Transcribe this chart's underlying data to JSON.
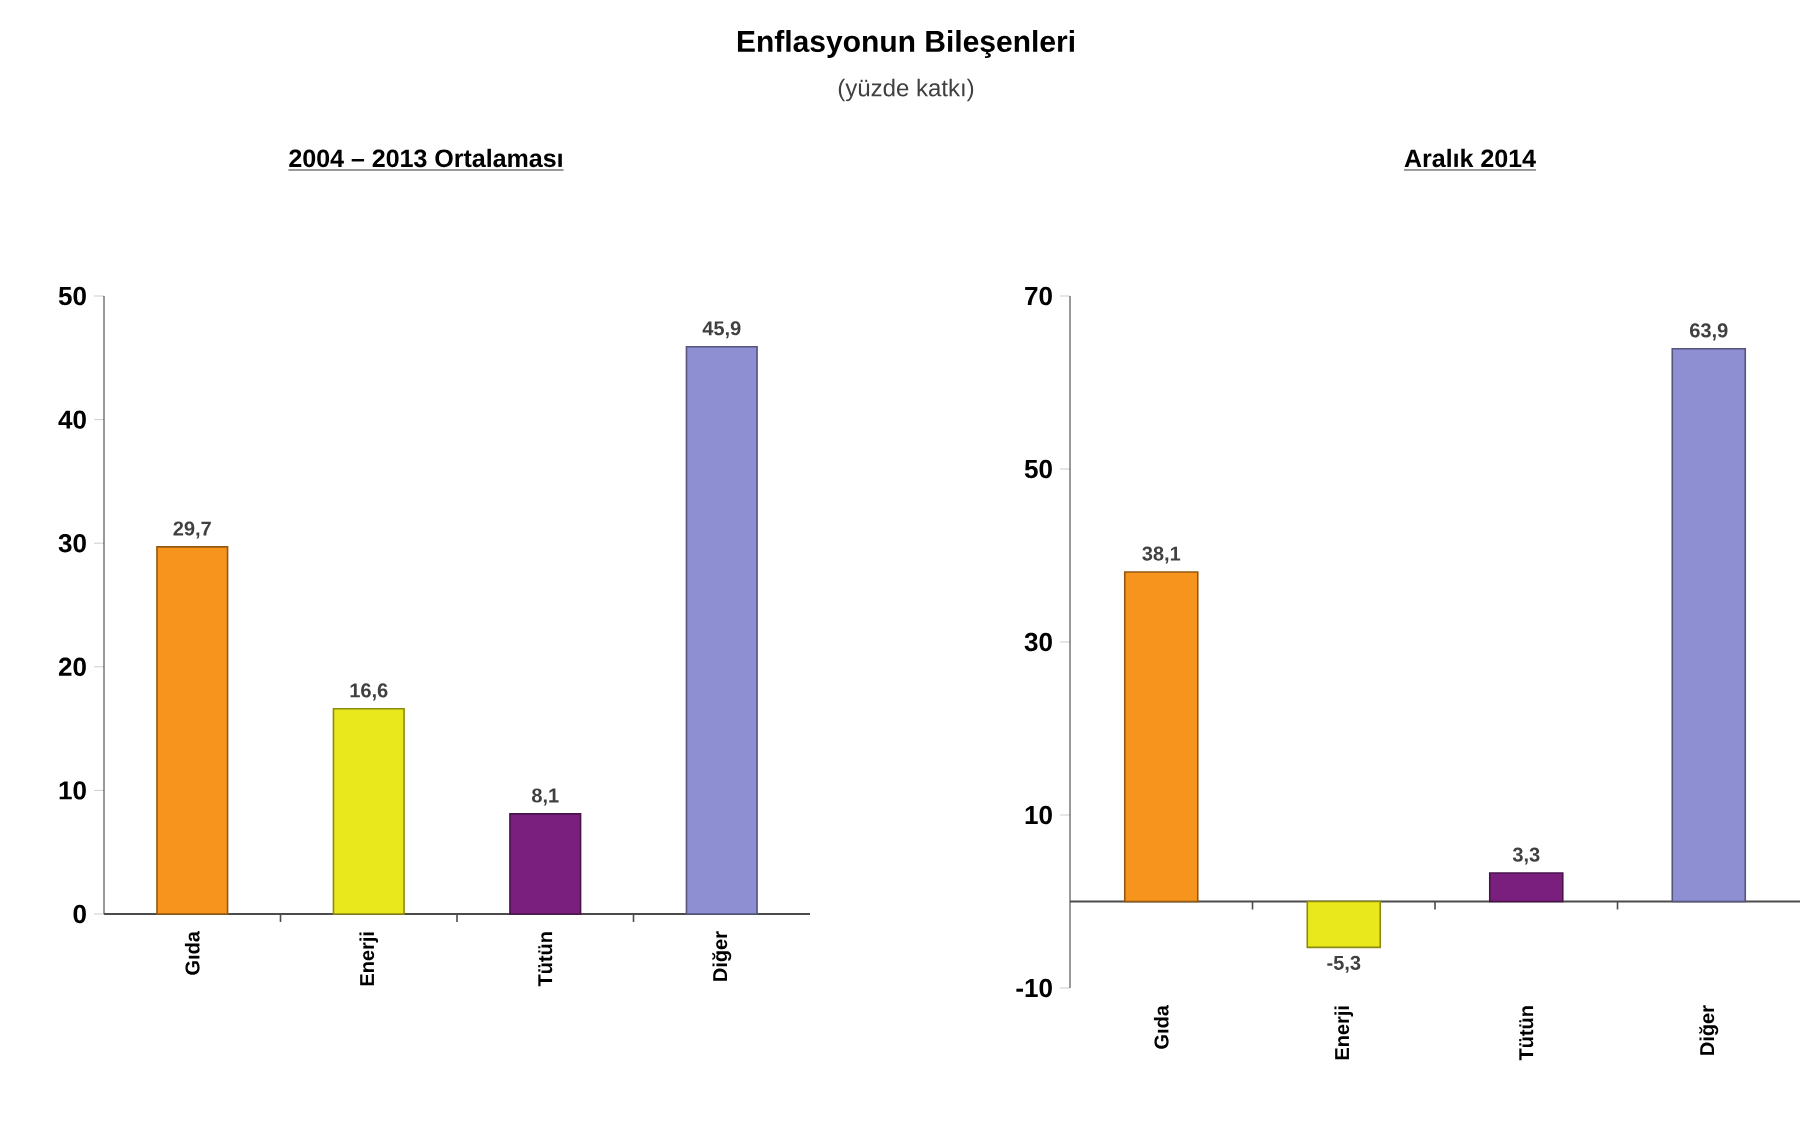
{
  "chart_data": [
    {
      "type": "other",
      "title": "Enflasyonun Bileşenleri",
      "subtitle": "(yüzde katkı)"
    },
    {
      "type": "bar",
      "title": "2004 – 2013 Ortalaması",
      "categories": [
        "Gıda",
        "Enerji",
        "Tütün",
        "Diğer"
      ],
      "values": [
        29.7,
        16.6,
        8.1,
        45.9
      ],
      "colors": [
        "#f7941d",
        "#e8e81c",
        "#7b1f7e",
        "#8e8ed2"
      ],
      "value_labels": [
        "29,7",
        "16,6",
        "8,1",
        "45,9"
      ],
      "ylim": [
        0,
        50
      ],
      "yticks": [
        0,
        10,
        20,
        30,
        40,
        50
      ]
    },
    {
      "type": "bar",
      "title": "Aralık 2014",
      "categories": [
        "Gıda",
        "Enerji",
        "Tütün",
        "Diğer"
      ],
      "values": [
        38.1,
        -5.3,
        3.3,
        63.9
      ],
      "colors": [
        "#f7941d",
        "#e8e81c",
        "#7b1f7e",
        "#8e8ed2"
      ],
      "value_labels": [
        "38,1",
        "-5,3",
        "3,3",
        "63,9"
      ],
      "ylim": [
        -10,
        70
      ],
      "yticks": [
        -10,
        10,
        30,
        50,
        70
      ]
    }
  ]
}
